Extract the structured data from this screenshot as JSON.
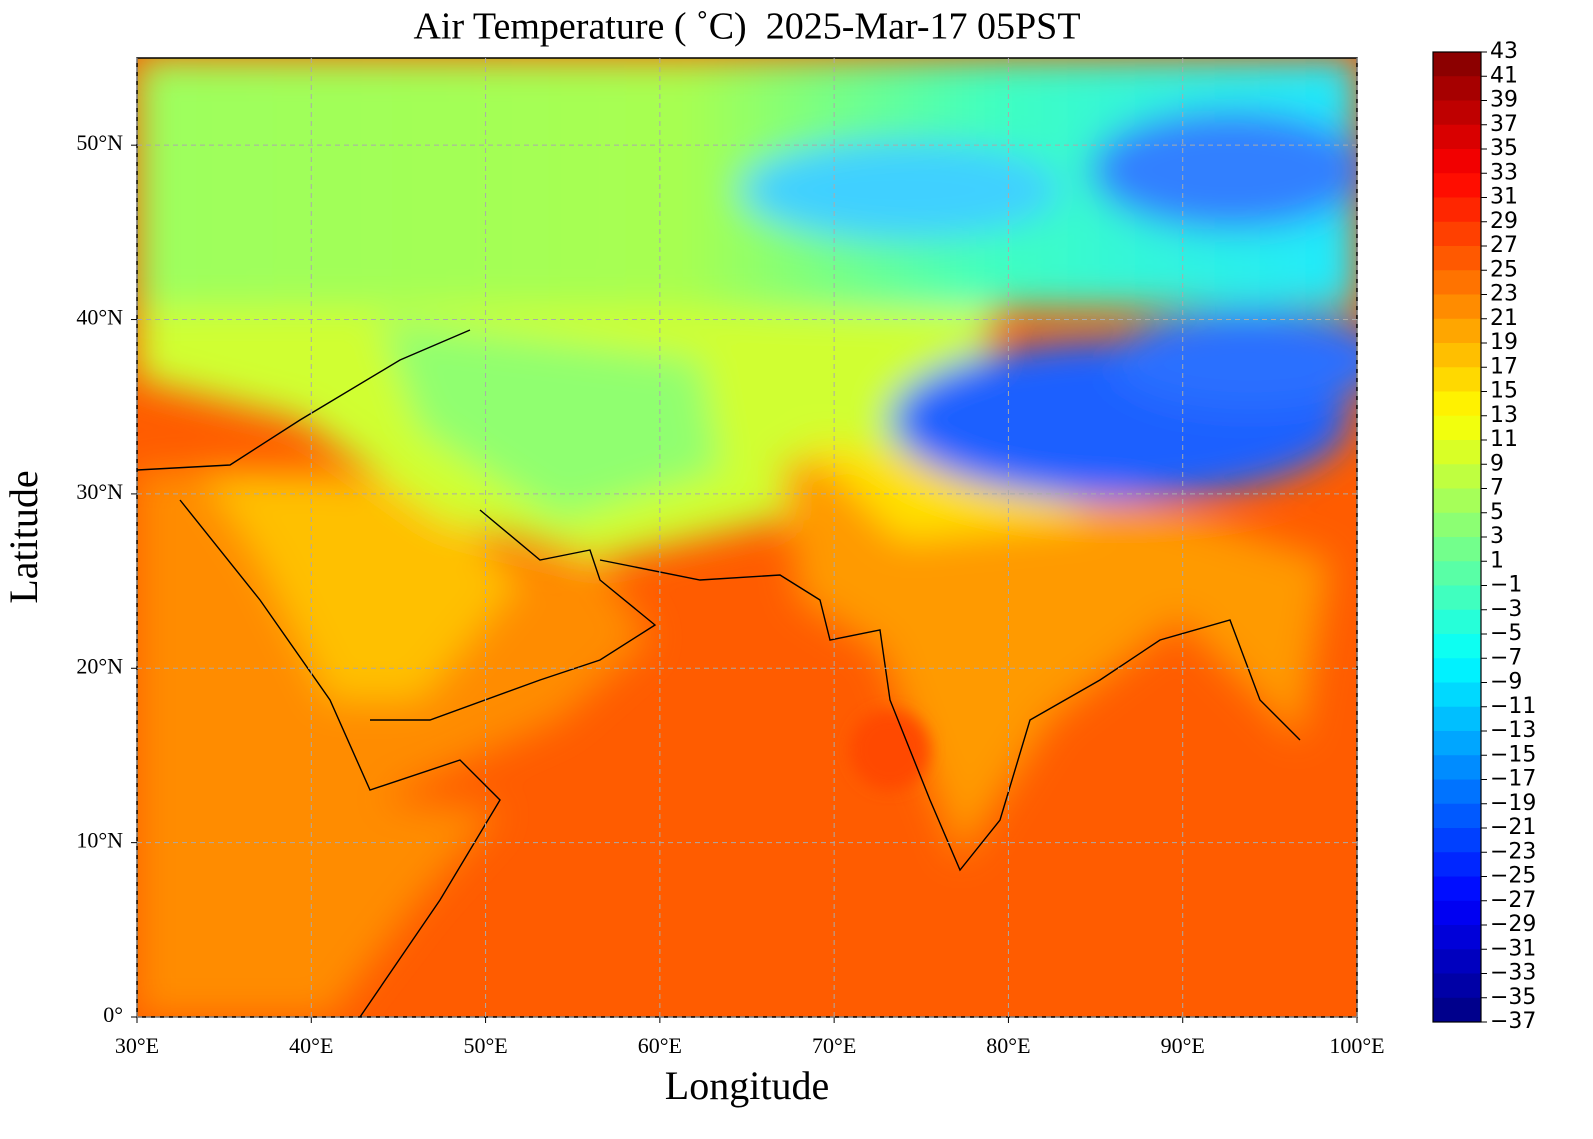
{
  "map": {
    "title": "Air Temperature ( ˚C)  2025-Mar-17 05PST",
    "xlabel": "Longitude",
    "ylabel": "Latitude",
    "xlim": [
      30,
      100
    ],
    "ylim": [
      0,
      55
    ],
    "xticks": [
      {
        "value": 30,
        "label": "30°E"
      },
      {
        "value": 40,
        "label": "40°E"
      },
      {
        "value": 50,
        "label": "50°E"
      },
      {
        "value": 60,
        "label": "60°E"
      },
      {
        "value": 70,
        "label": "70°E"
      },
      {
        "value": 80,
        "label": "80°E"
      },
      {
        "value": 90,
        "label": "90°E"
      },
      {
        "value": 100,
        "label": "100°E"
      }
    ],
    "yticks": [
      {
        "value": 0,
        "label": "0°"
      },
      {
        "value": 10,
        "label": "10°N"
      },
      {
        "value": 20,
        "label": "20°N"
      },
      {
        "value": 30,
        "label": "30°N"
      },
      {
        "value": 40,
        "label": "40°N"
      },
      {
        "value": 50,
        "label": "50°N"
      }
    ],
    "grid": true,
    "colorbar": {
      "lim": [
        -37,
        43
      ],
      "colormap": "jet",
      "ticks": [
        43,
        41,
        39,
        37,
        35,
        33,
        31,
        29,
        27,
        25,
        23,
        21,
        19,
        17,
        15,
        13,
        11,
        9,
        7,
        5,
        3,
        1,
        {
          "value": -1,
          "label": "−1"
        },
        {
          "value": -3,
          "label": "−3"
        },
        {
          "value": -5,
          "label": "−5"
        },
        {
          "value": -7,
          "label": "−7"
        },
        {
          "value": -9,
          "label": "−9"
        },
        {
          "value": -11,
          "label": "−11"
        },
        {
          "value": -13,
          "label": "−13"
        },
        {
          "value": -15,
          "label": "−15"
        },
        {
          "value": -17,
          "label": "−17"
        },
        {
          "value": -19,
          "label": "−19"
        },
        {
          "value": -21,
          "label": "−21"
        },
        {
          "value": -23,
          "label": "−23"
        },
        {
          "value": -25,
          "label": "−25"
        },
        {
          "value": -27,
          "label": "−27"
        },
        {
          "value": -29,
          "label": "−29"
        },
        {
          "value": -31,
          "label": "−31"
        },
        {
          "value": -33,
          "label": "−33"
        },
        {
          "value": -35,
          "label": "−35"
        },
        {
          "value": -37,
          "label": "−37"
        }
      ]
    }
  }
}
